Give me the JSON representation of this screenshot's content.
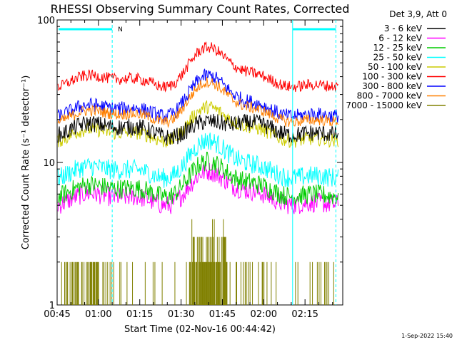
{
  "chart_data": {
    "type": "line",
    "title": "RHESSI Observing Summary Count Rates, Corrected",
    "xlabel": "Start Time (02-Nov-16 00:44:42)",
    "ylabel": "Corrected Count Rate (s⁻¹ detector⁻¹)",
    "yscale": "log",
    "ylim": [
      1,
      100
    ],
    "xlim_minutes": [
      0.3,
      104
    ],
    "x_ticks": [
      "00:45",
      "01:00",
      "01:15",
      "01:30",
      "01:45",
      "02:00",
      "02:15"
    ],
    "y_ticks": [
      "1",
      "10",
      "100"
    ],
    "legend_title": "Det 3,9, Att 0",
    "legend_position": "top-right outside",
    "series": [
      {
        "name": "3 - 6 keV",
        "color": "#000000",
        "base": 17,
        "peak": 19,
        "noise": 0.06
      },
      {
        "name": "6 - 12 keV",
        "color": "#ff00ff",
        "base": 5.5,
        "peak": 8.5,
        "noise": 0.07
      },
      {
        "name": "12 - 25 keV",
        "color": "#00cc00",
        "base": 6.3,
        "peak": 10,
        "noise": 0.07
      },
      {
        "name": "25 - 50 keV",
        "color": "#00ffff",
        "base": 8.5,
        "peak": 14,
        "noise": 0.07
      },
      {
        "name": "50 - 100 keV",
        "color": "#cccc00",
        "base": 15.5,
        "peak": 24,
        "noise": 0.05
      },
      {
        "name": "100 - 300 keV",
        "color": "#ff0000",
        "base": 37,
        "peak": 63,
        "noise": 0.04
      },
      {
        "name": "300 - 800 keV",
        "color": "#0000ff",
        "base": 23,
        "peak": 40,
        "noise": 0.05
      },
      {
        "name": "800 - 7000 keV",
        "color": "#ff8000",
        "base": 21,
        "peak": 36,
        "noise": 0.04
      },
      {
        "name": "7000 - 15000 keV",
        "color": "#808000",
        "base": 1,
        "peak": 3,
        "noise": 0
      }
    ],
    "markers": {
      "saa_start_minutes": 20.3,
      "saa_end_minutes": 101.5,
      "eclipse_start_minutes": 85.8,
      "n_label": "N",
      "color": "#00ffff"
    },
    "annotations": {
      "date_stamp": "1-Sep-2022 15:40"
    }
  }
}
